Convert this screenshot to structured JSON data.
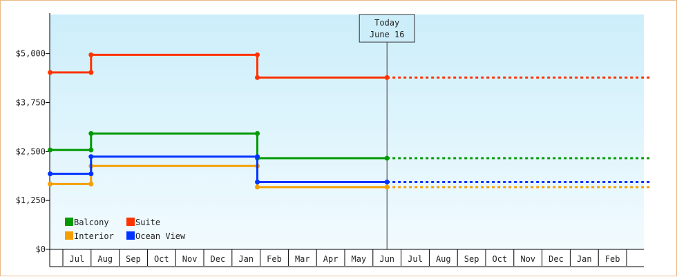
{
  "chart_data": {
    "type": "line",
    "step": true,
    "y_ticks": [
      {
        "value": 0,
        "label": "$0"
      },
      {
        "value": 1250,
        "label": "$1,250"
      },
      {
        "value": 2500,
        "label": "$2,500"
      },
      {
        "value": 3750,
        "label": "$3,750"
      },
      {
        "value": 5000,
        "label": "$5,000"
      }
    ],
    "ylim": [
      0,
      6000
    ],
    "month_labels": [
      "Jul",
      "Aug",
      "Sep",
      "Oct",
      "Nov",
      "Dec",
      "Jan",
      "Feb",
      "Mar",
      "Apr",
      "May",
      "Jun",
      "Jul",
      "Aug",
      "Sep",
      "Oct",
      "Nov",
      "Dec",
      "Jan",
      "Feb"
    ],
    "x_range_months": [
      -0.45,
      20.9
    ],
    "today": {
      "line1": "Today",
      "line2": "June 16",
      "x_month": 11.5
    },
    "series": [
      {
        "name": "Balcony",
        "color": "#009900",
        "points": [
          [
            -0.45,
            2540
          ],
          [
            1.0,
            2540
          ],
          [
            1.0,
            2960
          ],
          [
            6.9,
            2960
          ],
          [
            6.9,
            2330
          ],
          [
            11.5,
            2330
          ]
        ],
        "projection": [
          [
            11.5,
            2330
          ],
          [
            20.9,
            2330
          ]
        ]
      },
      {
        "name": "Suite",
        "color": "#ff3300",
        "points": [
          [
            -0.45,
            4520
          ],
          [
            1.0,
            4520
          ],
          [
            1.0,
            4970
          ],
          [
            6.9,
            4970
          ],
          [
            6.9,
            4390
          ],
          [
            11.5,
            4390
          ]
        ],
        "projection": [
          [
            11.5,
            4390
          ],
          [
            20.9,
            4390
          ]
        ]
      },
      {
        "name": "Interior",
        "color": "#f5a000",
        "points": [
          [
            -0.45,
            1670
          ],
          [
            1.0,
            1670
          ],
          [
            1.0,
            2130
          ],
          [
            6.9,
            2130
          ],
          [
            6.9,
            1590
          ],
          [
            11.5,
            1590
          ]
        ],
        "projection": [
          [
            11.5,
            1590
          ],
          [
            20.9,
            1590
          ]
        ]
      },
      {
        "name": "Ocean View",
        "color": "#0033ff",
        "points": [
          [
            -0.45,
            1930
          ],
          [
            1.0,
            1930
          ],
          [
            1.0,
            2370
          ],
          [
            6.9,
            2370
          ],
          [
            6.9,
            1720
          ],
          [
            11.5,
            1720
          ]
        ],
        "projection": [
          [
            11.5,
            1720
          ],
          [
            20.9,
            1720
          ]
        ]
      }
    ],
    "legend_position": "bottom-left",
    "grid": false
  }
}
